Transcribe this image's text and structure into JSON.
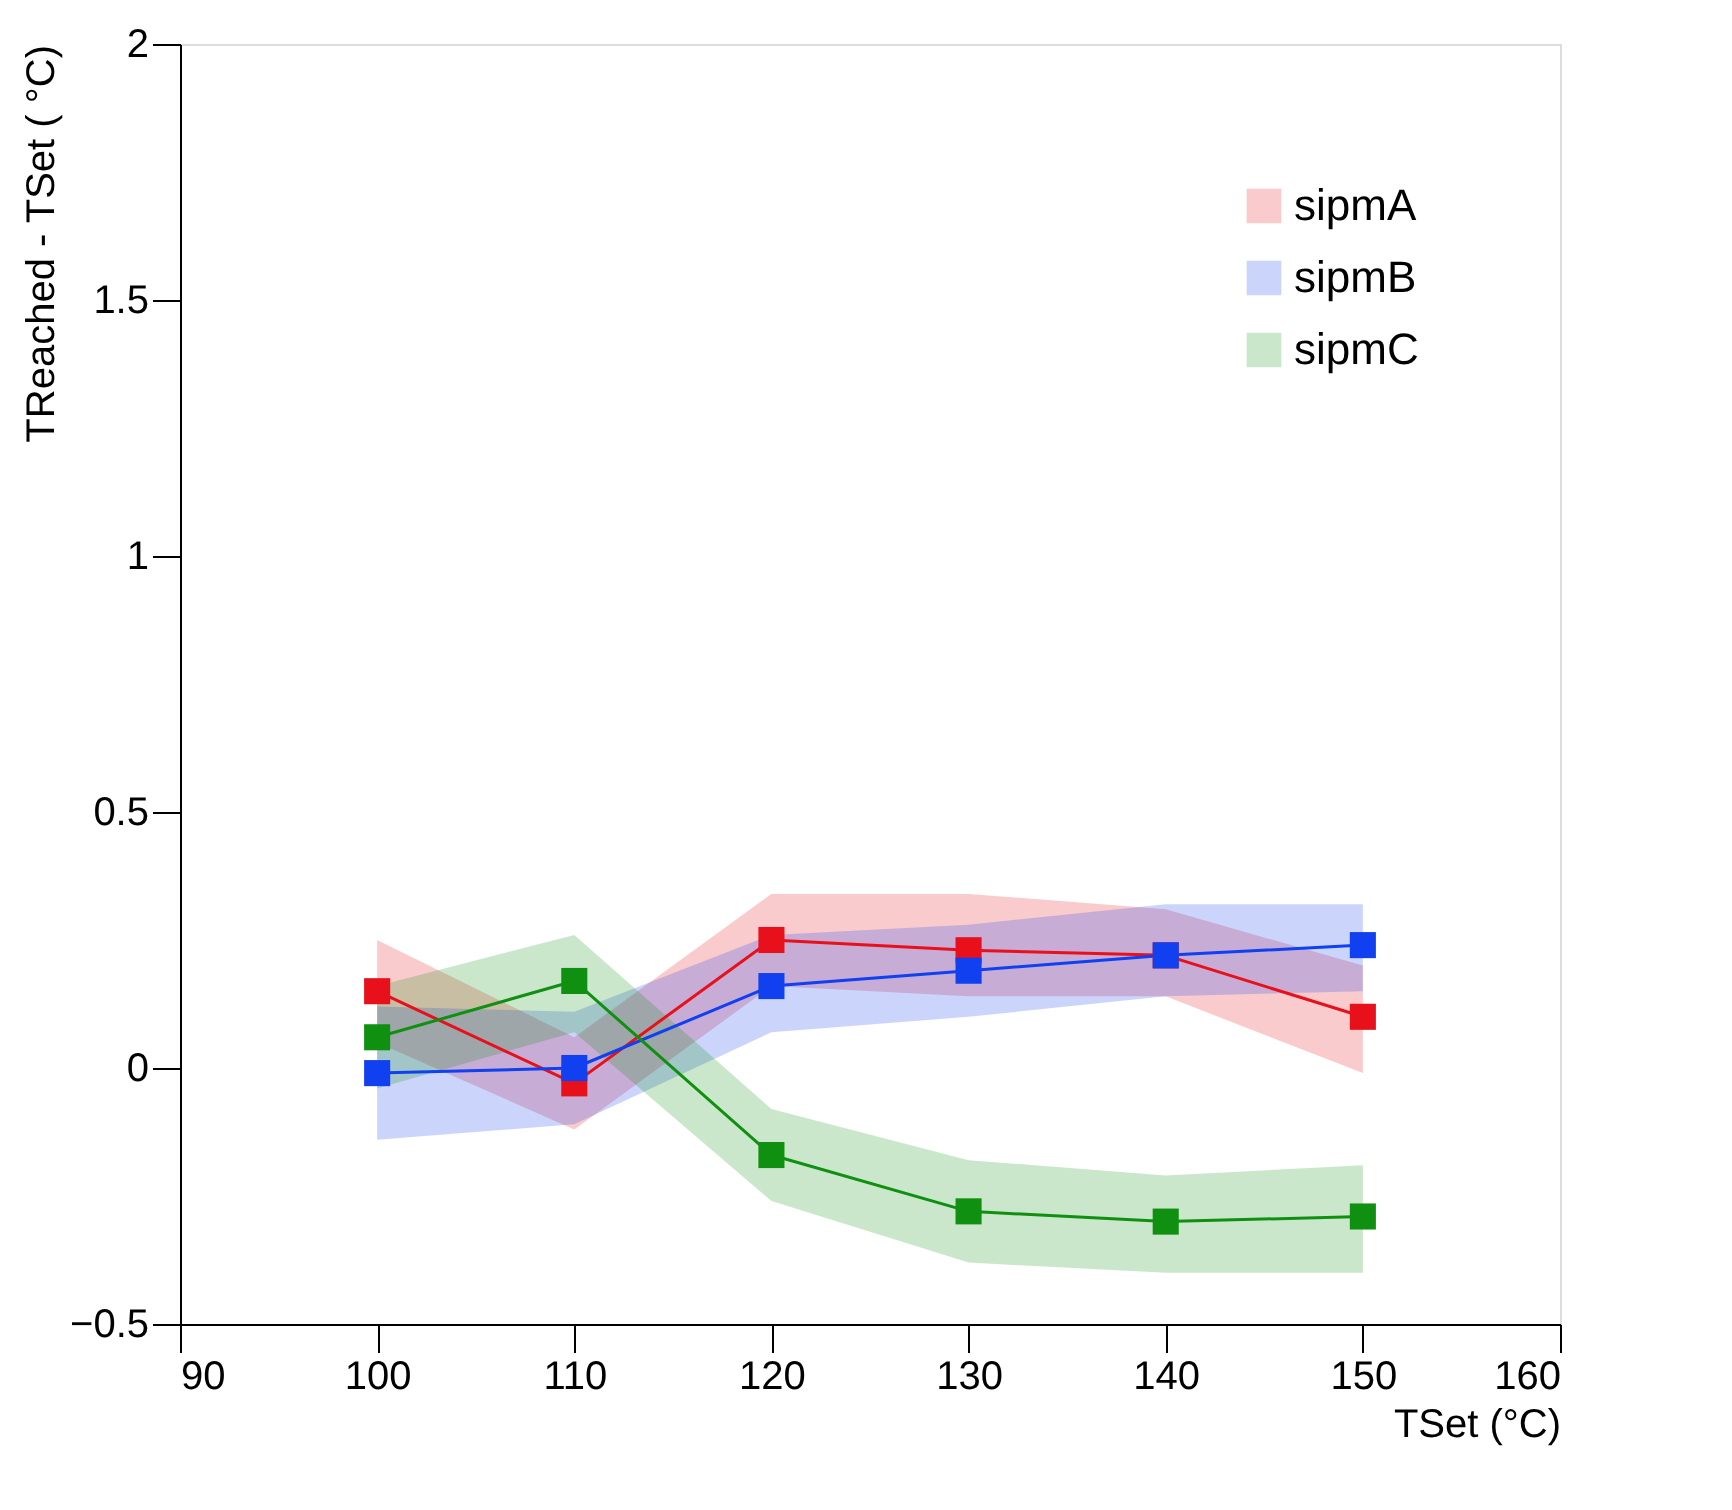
{
  "chart_data": {
    "type": "line",
    "xlabel": "TSet (°C)",
    "ylabel": "TReached - TSet ( °C)",
    "x": [
      100,
      110,
      120,
      130,
      140,
      150
    ],
    "xlim": [
      90,
      160
    ],
    "xticks": [
      90,
      100,
      110,
      120,
      130,
      140,
      150,
      160
    ],
    "ylim": [
      -0.5,
      2
    ],
    "yticks": [
      -0.5,
      0,
      0.5,
      1,
      1.5,
      2
    ],
    "series": [
      {
        "name": "sipmA",
        "color": "#e8101a",
        "values": [
          0.15,
          -0.03,
          0.25,
          0.23,
          0.22,
          0.1
        ],
        "lower": [
          0.05,
          -0.12,
          0.16,
          0.14,
          0.14,
          -0.01
        ],
        "upper": [
          0.25,
          0.06,
          0.34,
          0.34,
          0.31,
          0.2
        ]
      },
      {
        "name": "sipmB",
        "color": "#1040f0",
        "values": [
          -0.01,
          0.0,
          0.16,
          0.19,
          0.22,
          0.24
        ],
        "lower": [
          -0.14,
          -0.11,
          0.07,
          0.1,
          0.14,
          0.15
        ],
        "upper": [
          0.12,
          0.11,
          0.26,
          0.28,
          0.32,
          0.32
        ]
      },
      {
        "name": "sipmC",
        "color": "#109010",
        "values": [
          0.06,
          0.17,
          -0.17,
          -0.28,
          -0.3,
          -0.29
        ],
        "lower": [
          -0.04,
          0.07,
          -0.26,
          -0.38,
          -0.4,
          -0.4
        ],
        "upper": [
          0.16,
          0.26,
          -0.08,
          -0.18,
          -0.21,
          -0.19
        ]
      }
    ],
    "marker": "square",
    "line_style": "solid",
    "grid": false,
    "legend": "top right"
  }
}
